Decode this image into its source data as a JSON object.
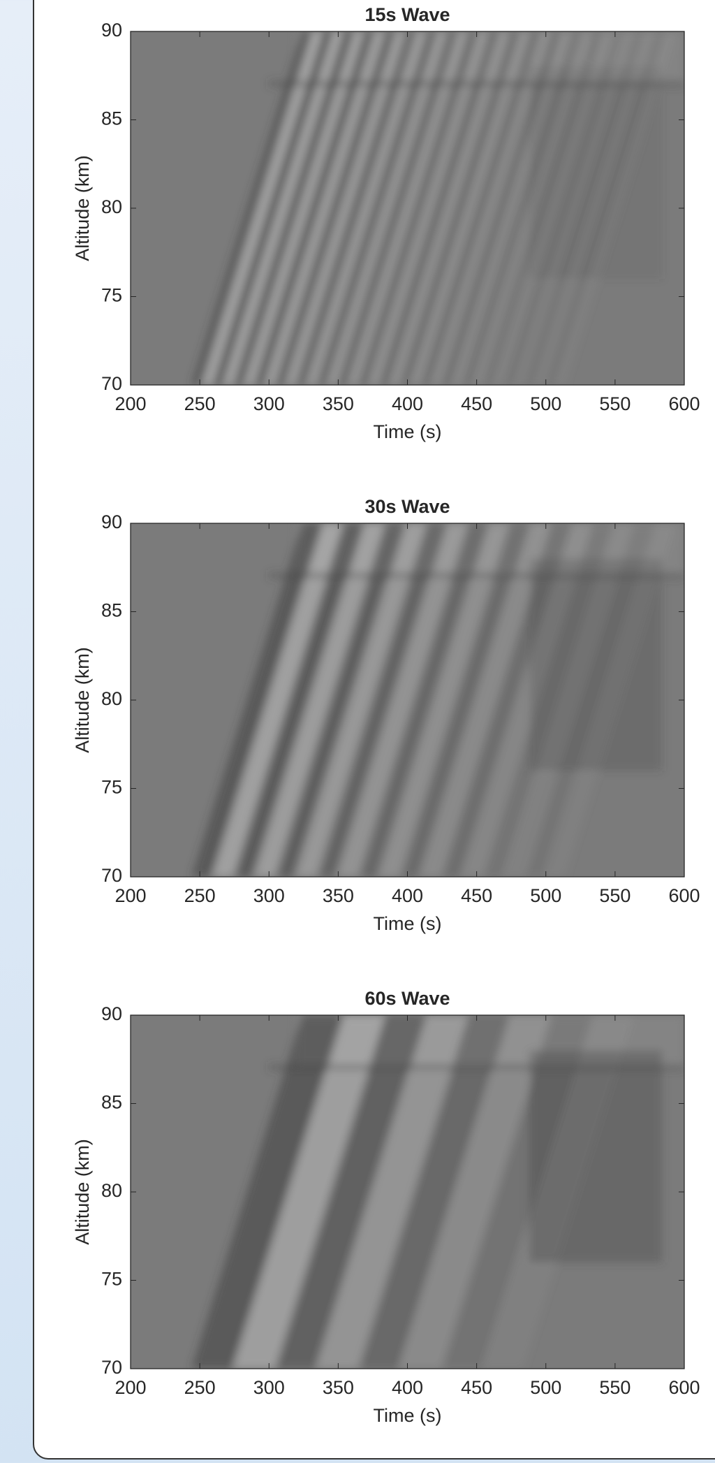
{
  "chart_data": [
    {
      "type": "heatmap",
      "title": "15s Wave",
      "xlabel": "Time (s)",
      "ylabel": "Altitude (km)",
      "xlim": [
        200,
        600
      ],
      "ylim": [
        70,
        90
      ],
      "xticks": [
        200,
        250,
        300,
        350,
        400,
        450,
        500,
        550,
        600
      ],
      "yticks": [
        70,
        75,
        80,
        85,
        90
      ]
    },
    {
      "type": "heatmap",
      "title": "30s Wave",
      "xlabel": "Time (s)",
      "ylabel": "Altitude (km)",
      "xlim": [
        200,
        600
      ],
      "ylim": [
        70,
        90
      ],
      "xticks": [
        200,
        250,
        300,
        350,
        400,
        450,
        500,
        550,
        600
      ],
      "yticks": [
        70,
        75,
        80,
        85,
        90
      ]
    },
    {
      "type": "heatmap",
      "title": "60s Wave",
      "xlabel": "Time (s)",
      "ylabel": "Altitude (km)",
      "xlim": [
        200,
        600
      ],
      "ylim": [
        70,
        90
      ],
      "xticks": [
        200,
        250,
        300,
        350,
        400,
        450,
        500,
        550,
        600
      ],
      "yticks": [
        70,
        75,
        80,
        85,
        90
      ]
    }
  ]
}
